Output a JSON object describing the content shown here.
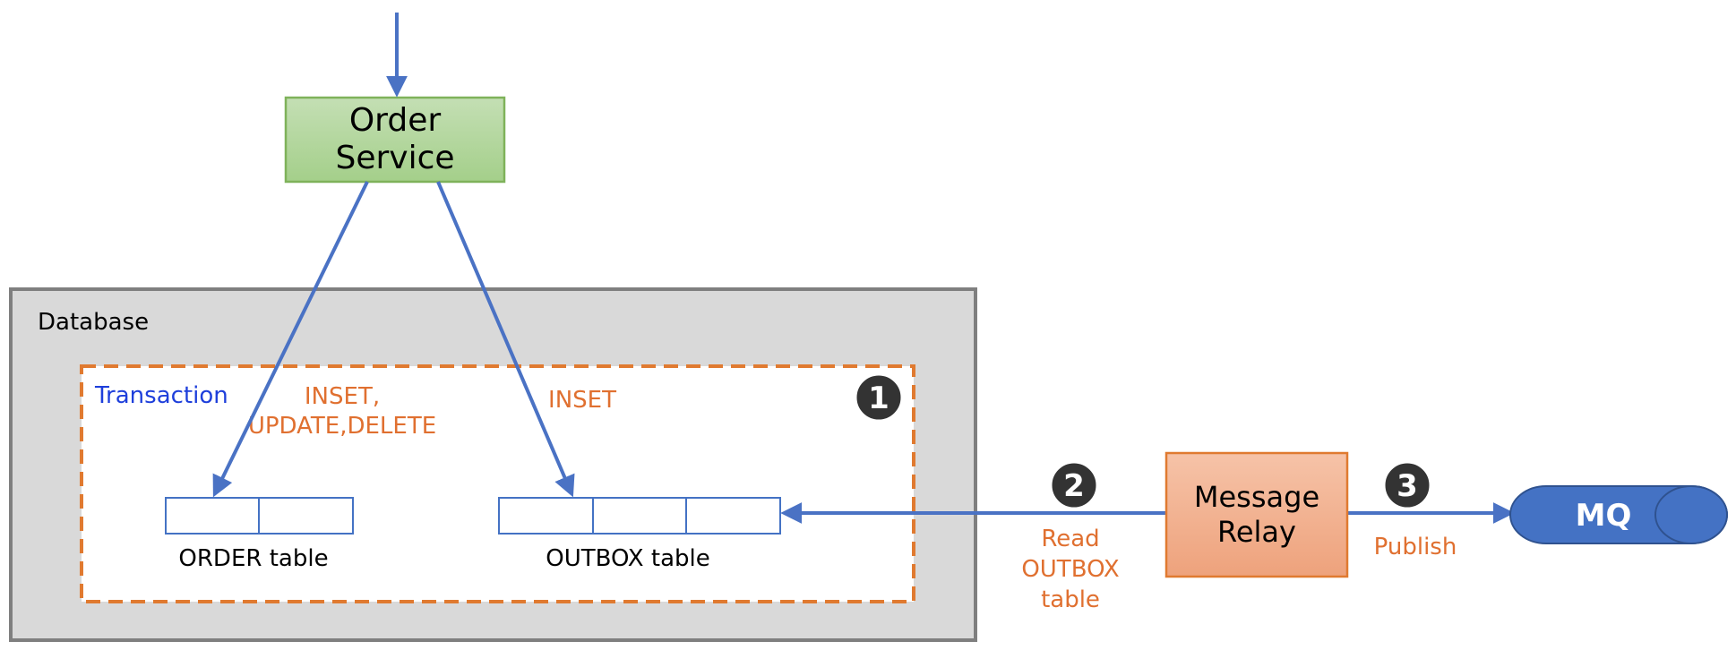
{
  "colors": {
    "arrow": "#4A72C4",
    "order_service_fill_top": "#C4DFB4",
    "order_service_fill_bottom": "#A4CF8A",
    "order_service_stroke": "#7FB25A",
    "database_fill": "#D9D9D9",
    "database_stroke": "#7F7F7F",
    "transaction_border": "#E07A30",
    "relay_fill_top": "#F6C3A8",
    "relay_fill_bottom": "#EEA27C",
    "relay_stroke": "#E07A30",
    "mq_fill": "#4472C4",
    "mq_stroke": "#2F528F",
    "step_badge": "#333333",
    "table_stroke": "#4472C4"
  },
  "order_service": {
    "line1": "Order",
    "line2": "Service"
  },
  "database": {
    "label": "Database"
  },
  "transaction": {
    "label": "Transaction"
  },
  "ops": {
    "order_line1": "INSET,",
    "order_line2": "UPDATE,DELETE",
    "outbox": "INSET"
  },
  "tables": {
    "order_label": "ORDER table",
    "outbox_label": "OUTBOX table"
  },
  "message_relay": {
    "line1": "Message",
    "line2": "Relay"
  },
  "mq": {
    "label": "MQ"
  },
  "steps": {
    "step1": "1",
    "step2": "2",
    "step3": "3"
  },
  "edges": {
    "read_line1": "Read",
    "read_line2": "OUTBOX",
    "read_line3": "table",
    "publish": "Publish"
  }
}
